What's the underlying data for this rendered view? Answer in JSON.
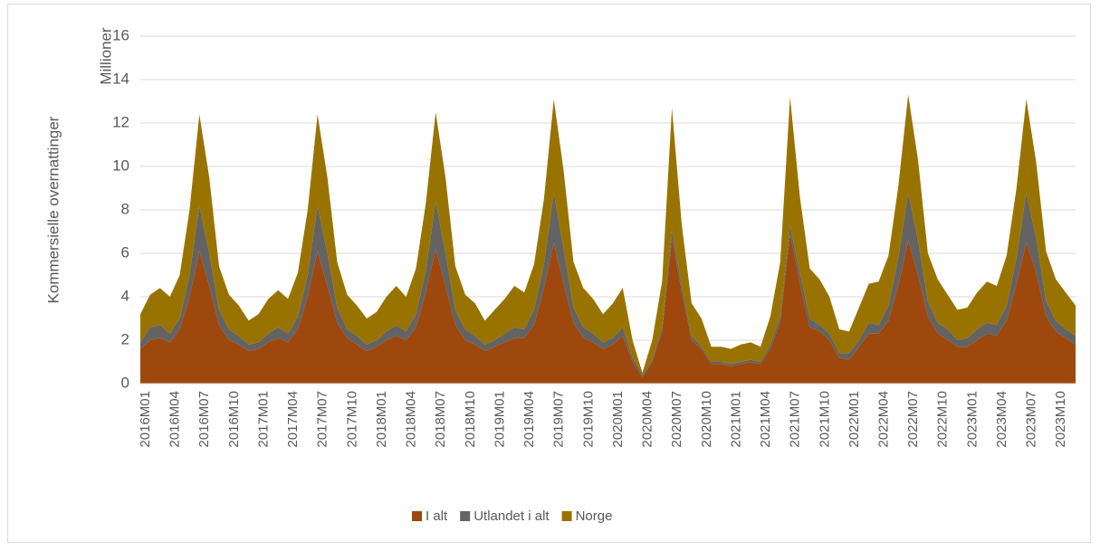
{
  "chart_data": {
    "type": "stacked_area",
    "y_label": "Kommersielle overnattinger",
    "y_unit_label": "Millioner",
    "categories": [
      "2016M01",
      null,
      null,
      "2016M04",
      null,
      null,
      "2016M07",
      null,
      null,
      "2016M10",
      null,
      null,
      "2017M01",
      null,
      null,
      "2017M04",
      null,
      null,
      "2017M07",
      null,
      null,
      "2017M10",
      null,
      null,
      "2018M01",
      null,
      null,
      "2018M04",
      null,
      null,
      "2018M07",
      null,
      null,
      "2018M10",
      null,
      null,
      "2019M01",
      null,
      null,
      "2019M04",
      null,
      null,
      "2019M07",
      null,
      null,
      "2019M10",
      null,
      null,
      "2020M01",
      null,
      null,
      "2020M04",
      null,
      null,
      "2020M07",
      null,
      null,
      "2020M10",
      null,
      null,
      "2021M01",
      null,
      null,
      "2021M04",
      null,
      null,
      "2021M07",
      null,
      null,
      "2021M10",
      null,
      null,
      "2022M01",
      null,
      null,
      "2022M04",
      null,
      null,
      "2022M07",
      null,
      null,
      "2022M10",
      null,
      null,
      "2023M01",
      null,
      null,
      "2023M04",
      null,
      null,
      "2023M07",
      null,
      null,
      "2023M10",
      null,
      null
    ],
    "series": [
      {
        "name": "I alt",
        "color": "#9e480e",
        "values": [
          1.6,
          2.0,
          2.1,
          1.9,
          2.5,
          4.0,
          6.1,
          4.5,
          2.7,
          2.0,
          1.8,
          1.5,
          1.6,
          1.9,
          2.1,
          1.9,
          2.5,
          4.0,
          6.1,
          4.5,
          2.8,
          2.1,
          1.8,
          1.5,
          1.7,
          2.0,
          2.2,
          2.0,
          2.6,
          4.2,
          6.2,
          4.5,
          2.7,
          2.0,
          1.8,
          1.5,
          1.7,
          1.9,
          2.1,
          2.1,
          2.7,
          4.4,
          6.5,
          4.6,
          2.8,
          2.1,
          1.9,
          1.6,
          1.8,
          2.2,
          1.0,
          0.3,
          1.0,
          2.4,
          6.7,
          4.2,
          2.0,
          1.6,
          0.9,
          0.9,
          0.8,
          0.9,
          1.0,
          0.9,
          1.6,
          2.8,
          6.9,
          4.6,
          2.6,
          2.4,
          2.0,
          1.2,
          1.1,
          1.7,
          2.3,
          2.3,
          2.9,
          4.5,
          6.6,
          5.0,
          3.1,
          2.3,
          2.0,
          1.7,
          1.7,
          2.0,
          2.3,
          2.2,
          2.9,
          4.6,
          6.5,
          5.1,
          3.1,
          2.4,
          2.1,
          1.8
        ]
      },
      {
        "name": "Utlandet i alt",
        "color": "#636363",
        "values": [
          0.3,
          0.6,
          0.6,
          0.4,
          0.5,
          1.0,
          2.1,
          1.5,
          0.7,
          0.5,
          0.4,
          0.3,
          0.3,
          0.4,
          0.5,
          0.4,
          0.6,
          1.0,
          2.1,
          1.5,
          0.7,
          0.4,
          0.4,
          0.3,
          0.3,
          0.4,
          0.5,
          0.4,
          0.6,
          1.0,
          2.2,
          1.5,
          0.7,
          0.5,
          0.4,
          0.3,
          0.3,
          0.4,
          0.5,
          0.4,
          0.7,
          1.1,
          2.3,
          1.6,
          0.7,
          0.5,
          0.4,
          0.3,
          0.3,
          0.4,
          0.2,
          0.1,
          0.1,
          0.2,
          0.4,
          0.3,
          0.2,
          0.1,
          0.1,
          0.1,
          0.1,
          0.1,
          0.1,
          0.1,
          0.2,
          0.3,
          0.4,
          0.5,
          0.4,
          0.3,
          0.3,
          0.2,
          0.3,
          0.3,
          0.5,
          0.4,
          0.7,
          1.3,
          2.2,
          1.6,
          0.7,
          0.5,
          0.5,
          0.3,
          0.4,
          0.5,
          0.5,
          0.5,
          0.7,
          1.2,
          2.3,
          1.6,
          0.7,
          0.5,
          0.4,
          0.4
        ]
      },
      {
        "name": "Norge",
        "color": "#997300",
        "values": [
          1.3,
          1.5,
          1.7,
          1.7,
          2.0,
          3.0,
          4.2,
          3.5,
          2.0,
          1.6,
          1.4,
          1.1,
          1.3,
          1.6,
          1.7,
          1.6,
          2.0,
          3.0,
          4.2,
          3.5,
          2.1,
          1.6,
          1.4,
          1.2,
          1.3,
          1.6,
          1.8,
          1.6,
          2.1,
          3.1,
          4.1,
          3.5,
          2.0,
          1.6,
          1.5,
          1.1,
          1.4,
          1.6,
          1.9,
          1.7,
          2.1,
          3.0,
          4.3,
          3.6,
          2.1,
          1.8,
          1.6,
          1.3,
          1.6,
          1.8,
          0.8,
          0.1,
          0.9,
          2.1,
          5.6,
          2.8,
          1.5,
          1.3,
          0.7,
          0.7,
          0.7,
          0.8,
          0.8,
          0.7,
          1.3,
          2.5,
          5.9,
          3.5,
          2.3,
          2.1,
          1.7,
          1.1,
          1.0,
          1.5,
          1.8,
          2.0,
          2.3,
          3.3,
          4.5,
          3.7,
          2.2,
          2.0,
          1.6,
          1.4,
          1.4,
          1.7,
          1.9,
          1.8,
          2.3,
          3.2,
          4.3,
          3.5,
          2.3,
          1.9,
          1.7,
          1.4
        ]
      }
    ],
    "ylim": [
      0,
      16
    ],
    "yticks": [
      0,
      2,
      4,
      6,
      8,
      10,
      12,
      14,
      16
    ],
    "grid": true,
    "legend": "bottom"
  }
}
